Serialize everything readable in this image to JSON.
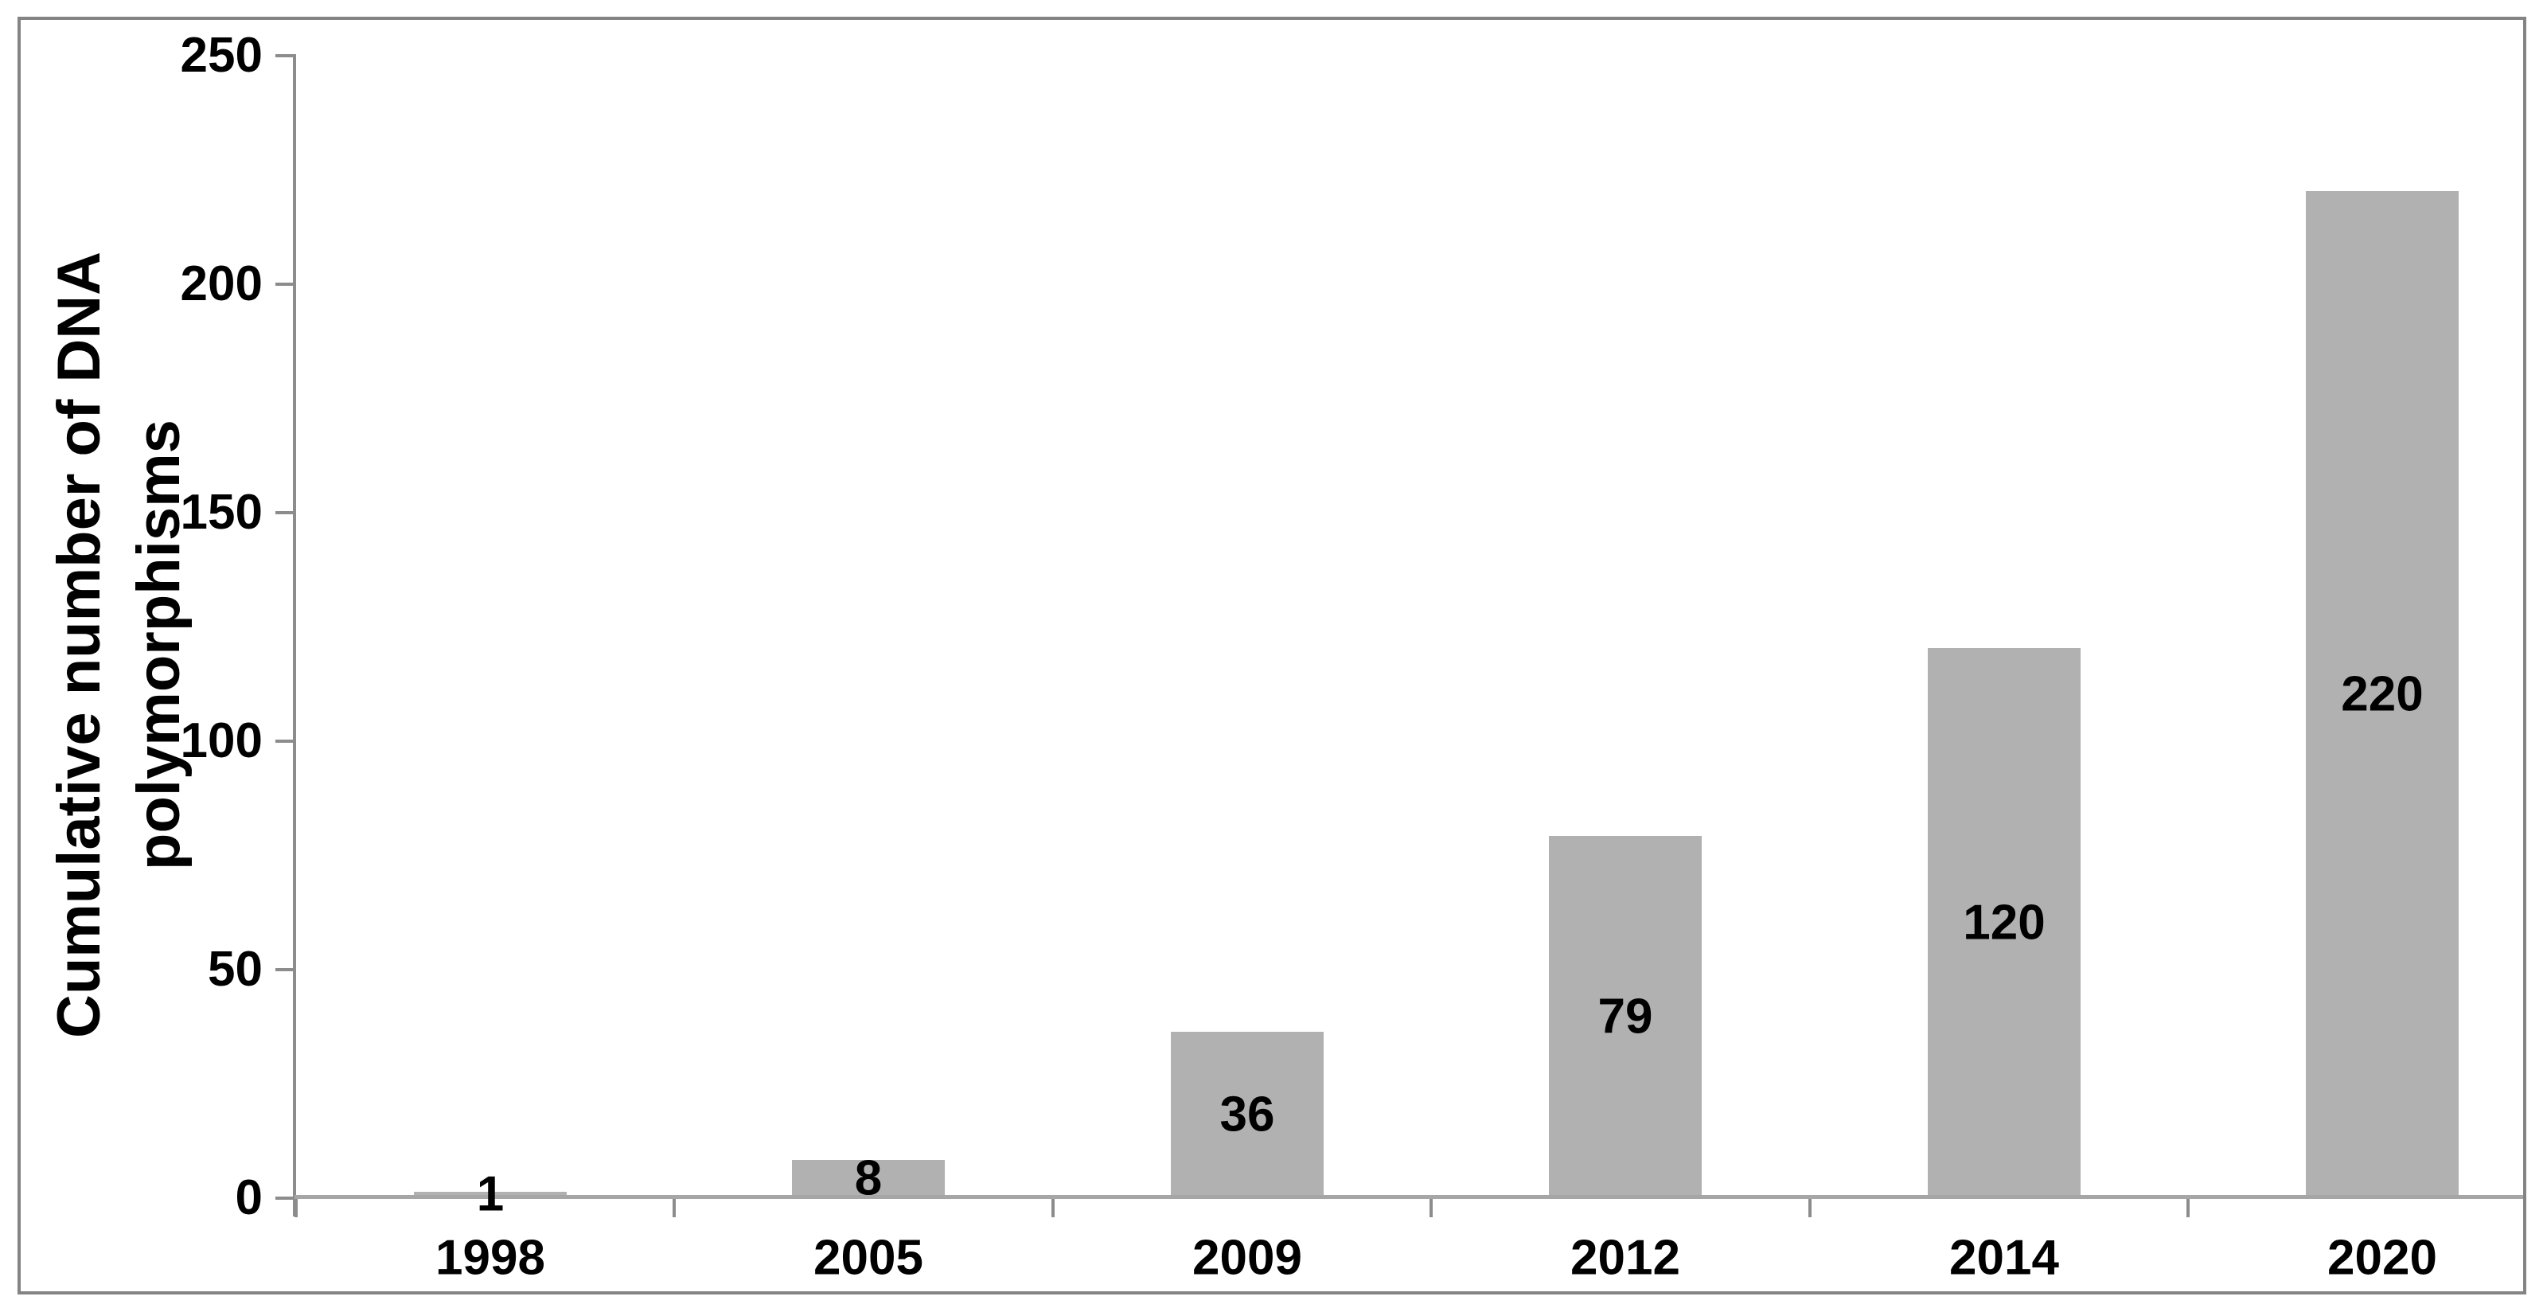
{
  "figure": {
    "background_color": "#ffffff",
    "border_color": "#848484"
  },
  "chart_data": {
    "type": "bar",
    "title": "",
    "categories": [
      "1998",
      "2005",
      "2009",
      "2012",
      "2014",
      "2020"
    ],
    "values": [
      1,
      8,
      36,
      79,
      120,
      220
    ],
    "bar_labels": [
      "1",
      "8",
      "36",
      "79",
      "120",
      "220"
    ],
    "ylabel_line1": "Cumulative number of DNA",
    "ylabel_line2": "polymorphisms",
    "xlabel": "",
    "y_ticks": [
      0,
      50,
      100,
      150,
      200,
      250
    ],
    "ylim": [
      0,
      250
    ],
    "grid": "off",
    "legend": "none",
    "value_label_position": "center",
    "bar_color": "#b1b1b1",
    "axis_color": "#8c8c8c",
    "baseline_color": "#a6a6a6",
    "label_color": "#000000"
  }
}
